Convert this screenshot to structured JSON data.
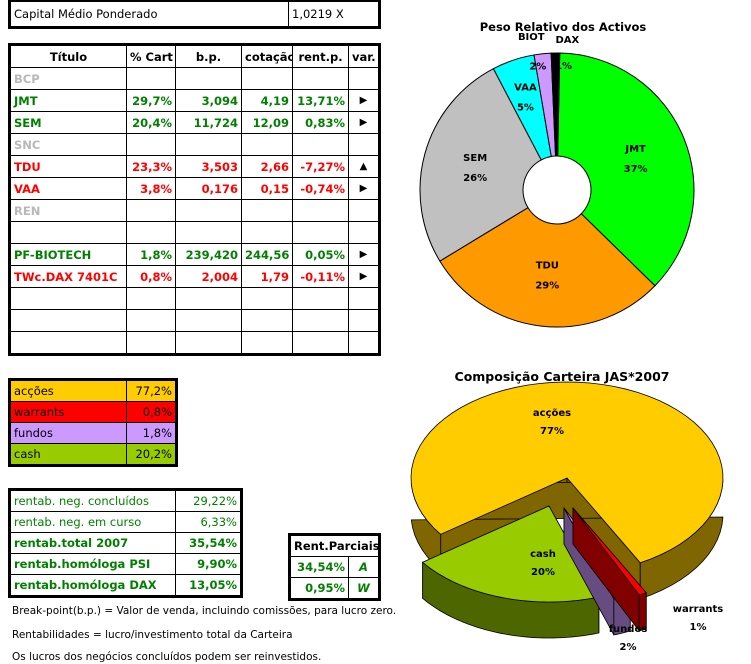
{
  "capital": {
    "label": "Capital Médio Ponderado",
    "value": "1,0219 X"
  },
  "main_table": {
    "headers": [
      "Título",
      "% Cart",
      "b.p.",
      "cotação",
      "rent.p.",
      "var."
    ],
    "rows": [
      {
        "titulo": "BCP",
        "cart": "",
        "bp": "",
        "cot": "",
        "rent": "",
        "var": "",
        "color": "gray"
      },
      {
        "titulo": "JMT",
        "cart": "29,7%",
        "bp": "3,094",
        "cot": "4,19",
        "rent": "13,71%",
        "var": "arrow-right",
        "color": "green"
      },
      {
        "titulo": "SEM",
        "cart": "20,4%",
        "bp": "11,724",
        "cot": "12,09",
        "rent": "0,83%",
        "var": "arrow-right",
        "color": "green"
      },
      {
        "titulo": "SNC",
        "cart": "",
        "bp": "",
        "cot": "",
        "rent": "",
        "var": "",
        "color": "gray"
      },
      {
        "titulo": "TDU",
        "cart": "23,3%",
        "bp": "3,503",
        "cot": "2,66",
        "rent": "-7,27%",
        "var": "arrow-up",
        "color": "red"
      },
      {
        "titulo": "VAA",
        "cart": "3,8%",
        "bp": "0,176",
        "cot": "0,15",
        "rent": "-0,74%",
        "var": "arrow-right",
        "color": "red"
      },
      {
        "titulo": "REN",
        "cart": "",
        "bp": "",
        "cot": "",
        "rent": "",
        "var": "",
        "color": "gray"
      },
      {
        "titulo": "",
        "cart": "",
        "bp": "",
        "cot": "",
        "rent": "",
        "var": "",
        "color": "gray"
      },
      {
        "titulo": "PF-BIOTECH",
        "cart": "1,8%",
        "bp": "239,420",
        "cot": "244,56",
        "rent": "0,05%",
        "var": "arrow-right",
        "color": "green"
      },
      {
        "titulo": "TWc.DAX 7401C",
        "cart": "0,8%",
        "bp": "2,004",
        "cot": "1,79",
        "rent": "-0,11%",
        "var": "arrow-right",
        "color": "red"
      },
      {
        "titulo": "",
        "cart": "",
        "bp": "",
        "cot": "",
        "rent": "",
        "var": "",
        "color": "gray"
      },
      {
        "titulo": "",
        "cart": "",
        "bp": "",
        "cot": "",
        "rent": "",
        "var": "",
        "color": "gray"
      },
      {
        "titulo": "",
        "cart": "",
        "bp": "",
        "cot": "",
        "rent": "",
        "var": "",
        "color": "gray"
      }
    ]
  },
  "composition": [
    {
      "label": "acções",
      "value": "77,2%",
      "color": "#FFCC00"
    },
    {
      "label": "warrants",
      "value": "0,8%",
      "color": "#FF0000"
    },
    {
      "label": "fundos",
      "value": "1,8%",
      "color": "#CC99FF"
    },
    {
      "label": "cash",
      "value": "20,2%",
      "color": "#99CC00"
    }
  ],
  "rentab": [
    {
      "label": "rentab. neg. concluídos",
      "value": "29,22%",
      "bold": false
    },
    {
      "label": "rentab. neg. em curso",
      "value": "6,33%",
      "bold": false
    },
    {
      "label": "rentab.total 2007",
      "value": "35,54%",
      "bold": true
    },
    {
      "label": "rentab.homóloga PSI",
      "value": "9,90%",
      "bold": true
    },
    {
      "label": "rentab.homóloga DAX",
      "value": "13,05%",
      "bold": true
    }
  ],
  "rent_parciais": {
    "header": "Rent.Parciais",
    "rows": [
      {
        "value": "34,54%",
        "code": "A"
      },
      {
        "value": "0,95%",
        "code": "W"
      }
    ]
  },
  "notes": [
    "Break-point(b.p.) = Valor de venda, incluindo comissões, para lucro zero.",
    "Rentabilidades = lucro/investimento total da Carteira",
    "Os lucros dos negócios concluídos podem ser reinvestidos."
  ],
  "chart_data": [
    {
      "type": "pie",
      "style": "doughnut",
      "title": "Peso Relativo dos Activos",
      "slices": [
        {
          "label": "JMT",
          "value": 37,
          "text": "37%",
          "color": "#00FF00"
        },
        {
          "label": "TDU",
          "value": 29,
          "text": "29%",
          "color": "#FF9900"
        },
        {
          "label": "SEM",
          "value": 26,
          "text": "26%",
          "color": "#C0C0C0"
        },
        {
          "label": "VAA",
          "value": 5,
          "text": "5%",
          "color": "#00FFFF"
        },
        {
          "label": "BIOT",
          "value": 2,
          "text": "2%",
          "color": "#CC99FF"
        },
        {
          "label": "DAX",
          "value": 1,
          "text": "1%",
          "color": "#000000"
        }
      ]
    },
    {
      "type": "pie",
      "style": "3d-exploded",
      "title": "Composição Carteira JAS*2007",
      "slices": [
        {
          "label": "warrants",
          "value": 0.8,
          "text": "1%",
          "color": "#FF0000",
          "side": "#800000"
        },
        {
          "label": "fundos",
          "value": 1.8,
          "text": "2%",
          "color": "#CC99FF",
          "side": "#664C80"
        },
        {
          "label": "cash",
          "value": 20.2,
          "text": "20%",
          "color": "#99CC00",
          "side": "#4D6600"
        },
        {
          "label": "acções",
          "value": 77.2,
          "text": "77%",
          "color": "#FFCC00",
          "side": "#806600"
        }
      ]
    }
  ]
}
